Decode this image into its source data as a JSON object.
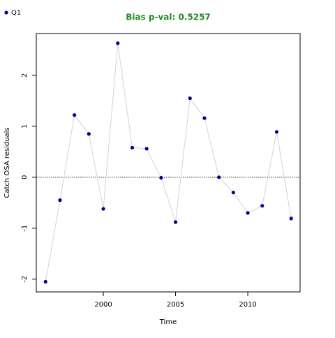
{
  "chart_data": {
    "type": "line",
    "title": "Bias p-val: 0.5257",
    "title_color": "#228b22",
    "xlabel": "Time",
    "ylabel": "Catch OSA residuals",
    "x": [
      1996,
      1997,
      1998,
      1999,
      2000,
      2001,
      2002,
      2003,
      2004,
      2005,
      2006,
      2007,
      2008,
      2009,
      2010,
      2011,
      2012,
      2013
    ],
    "series": [
      {
        "name": "Q1",
        "color": "#00008b",
        "line_color": "#d3d3d3",
        "values": [
          -2.05,
          -0.45,
          1.22,
          0.85,
          -0.62,
          2.63,
          0.58,
          0.56,
          -0.01,
          -0.88,
          1.55,
          1.16,
          0.0,
          -0.3,
          -0.7,
          -0.56,
          0.89,
          -0.81
        ]
      }
    ],
    "xlim": [
      1995.36,
      2013.62
    ],
    "ylim": [
      -2.25,
      2.82
    ],
    "xticks": [
      2000,
      2005,
      2010
    ],
    "yticks": [
      -2,
      -1,
      0,
      1,
      2
    ],
    "reference_line": 0,
    "grid": false,
    "legend": "top-left"
  }
}
